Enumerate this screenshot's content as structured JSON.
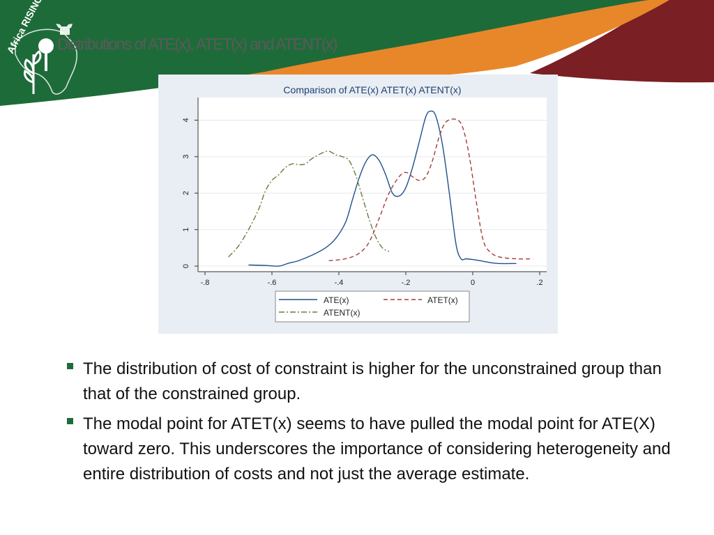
{
  "logo": {
    "text": "Africa RISING"
  },
  "slide": {
    "title": "Distributions of ATE(x), ATET(x) and ATENT(x)",
    "bullets": [
      "The distribution of cost of constraint is higher for the unconstrained group than that of the constrained group.",
      "The modal point for ATET(x) seems to have pulled the modal point for ATE(X) toward zero. This underscores the importance of considering heterogeneity and entire distribution of costs and not just the average estimate."
    ]
  },
  "colors": {
    "banner_green": "#1e6b3a",
    "banner_orange": "#e8872a",
    "banner_maroon": "#7a1f24",
    "ate": "#1f4e8c",
    "atet": "#a33a3a",
    "atent": "#6b7a3a"
  },
  "chart_data": {
    "type": "line",
    "title": "Comparison of ATE(x) ATET(x) ATENT(x)",
    "xlabel": "",
    "ylabel": "",
    "xlim": [
      -0.8,
      0.2
    ],
    "ylim": [
      0,
      4.2
    ],
    "x_ticks": [
      "-.8",
      "-.6",
      "-.4",
      "-.2",
      "0",
      ".2"
    ],
    "x_tick_values": [
      -0.8,
      -0.6,
      -0.4,
      -0.2,
      0,
      0.2
    ],
    "y_ticks": [
      "0",
      "1",
      "2",
      "3",
      "4"
    ],
    "y_tick_values": [
      0,
      1,
      2,
      3,
      4
    ],
    "grid": "horizontal",
    "legend": "bottom",
    "series": [
      {
        "name": "ATE(x)",
        "style": "solid",
        "points": [
          [
            -0.67,
            0.03
          ],
          [
            -0.62,
            0.02
          ],
          [
            -0.58,
            0.0
          ],
          [
            -0.55,
            0.08
          ],
          [
            -0.52,
            0.15
          ],
          [
            -0.48,
            0.3
          ],
          [
            -0.44,
            0.5
          ],
          [
            -0.41,
            0.75
          ],
          [
            -0.38,
            1.2
          ],
          [
            -0.36,
            1.8
          ],
          [
            -0.34,
            2.4
          ],
          [
            -0.32,
            2.85
          ],
          [
            -0.3,
            3.05
          ],
          [
            -0.28,
            2.9
          ],
          [
            -0.26,
            2.5
          ],
          [
            -0.24,
            2.0
          ],
          [
            -0.22,
            1.92
          ],
          [
            -0.2,
            2.15
          ],
          [
            -0.18,
            2.7
          ],
          [
            -0.16,
            3.4
          ],
          [
            -0.14,
            4.1
          ],
          [
            -0.125,
            4.25
          ],
          [
            -0.11,
            4.1
          ],
          [
            -0.09,
            3.3
          ],
          [
            -0.07,
            2.0
          ],
          [
            -0.05,
            0.6
          ],
          [
            -0.035,
            0.2
          ],
          [
            -0.02,
            0.2
          ],
          [
            0.0,
            0.18
          ],
          [
            0.02,
            0.15
          ],
          [
            0.05,
            0.1
          ],
          [
            0.08,
            0.07
          ],
          [
            0.13,
            0.07
          ]
        ]
      },
      {
        "name": "ATET(x)",
        "style": "dash",
        "points": [
          [
            -0.43,
            0.15
          ],
          [
            -0.38,
            0.2
          ],
          [
            -0.34,
            0.35
          ],
          [
            -0.31,
            0.65
          ],
          [
            -0.28,
            1.3
          ],
          [
            -0.25,
            2.0
          ],
          [
            -0.22,
            2.45
          ],
          [
            -0.2,
            2.57
          ],
          [
            -0.18,
            2.45
          ],
          [
            -0.16,
            2.35
          ],
          [
            -0.14,
            2.45
          ],
          [
            -0.12,
            2.9
          ],
          [
            -0.1,
            3.55
          ],
          [
            -0.08,
            3.95
          ],
          [
            -0.05,
            4.02
          ],
          [
            -0.03,
            3.8
          ],
          [
            -0.01,
            3.0
          ],
          [
            0.01,
            1.8
          ],
          [
            0.03,
            0.75
          ],
          [
            0.05,
            0.4
          ],
          [
            0.08,
            0.25
          ],
          [
            0.13,
            0.2
          ],
          [
            0.18,
            0.2
          ]
        ]
      },
      {
        "name": "ATENT(x)",
        "style": "dashdot",
        "points": [
          [
            -0.73,
            0.25
          ],
          [
            -0.7,
            0.55
          ],
          [
            -0.67,
            1.0
          ],
          [
            -0.64,
            1.55
          ],
          [
            -0.62,
            2.05
          ],
          [
            -0.6,
            2.35
          ],
          [
            -0.58,
            2.5
          ],
          [
            -0.56,
            2.7
          ],
          [
            -0.54,
            2.8
          ],
          [
            -0.52,
            2.78
          ],
          [
            -0.5,
            2.8
          ],
          [
            -0.48,
            2.95
          ],
          [
            -0.45,
            3.1
          ],
          [
            -0.43,
            3.15
          ],
          [
            -0.41,
            3.05
          ],
          [
            -0.39,
            3.0
          ],
          [
            -0.37,
            2.9
          ],
          [
            -0.35,
            2.5
          ],
          [
            -0.33,
            1.9
          ],
          [
            -0.31,
            1.3
          ],
          [
            -0.29,
            0.8
          ],
          [
            -0.27,
            0.5
          ],
          [
            -0.25,
            0.4
          ]
        ]
      }
    ]
  }
}
